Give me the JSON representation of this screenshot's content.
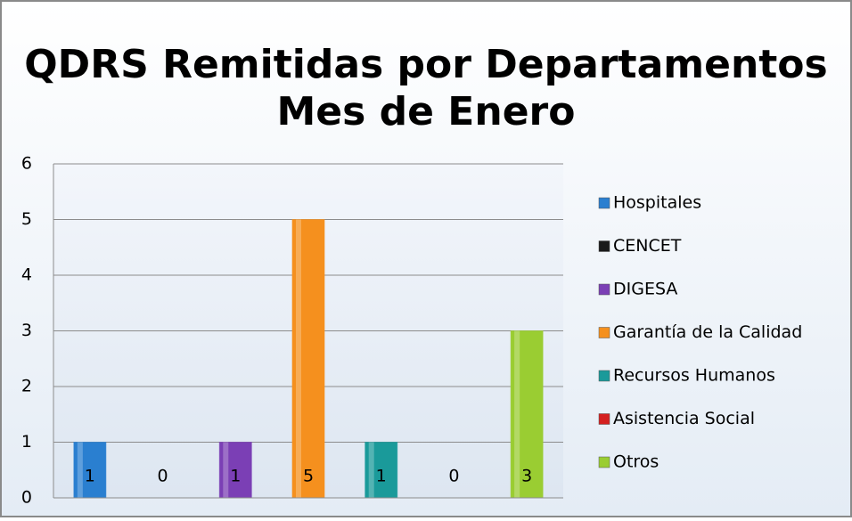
{
  "chart_data": {
    "type": "bar",
    "title": [
      "QDRS Remitidas por Departamentos",
      "Mes de Enero"
    ],
    "categories": [
      null
    ],
    "series": [
      {
        "name": "Hospitales",
        "color": "#2a7fd0",
        "values": [
          1
        ]
      },
      {
        "name": "CENCET",
        "color": "#1a1a1a",
        "values": [
          0
        ]
      },
      {
        "name": "DIGESA",
        "color": "#7b3fb5",
        "values": [
          1
        ]
      },
      {
        "name": "Garantía de la Calidad",
        "color": "#f5901e",
        "values": [
          5
        ]
      },
      {
        "name": "Recursos Humanos",
        "color": "#1a9a9a",
        "values": [
          1
        ]
      },
      {
        "name": "Asistencia Social",
        "color": "#d42020",
        "values": [
          0
        ]
      },
      {
        "name": "Otros",
        "color": "#9acd32",
        "values": [
          3
        ]
      }
    ],
    "ylim": [
      0,
      6
    ],
    "yticks": [
      0,
      1,
      2,
      3,
      4,
      5,
      6
    ],
    "grid": true,
    "legend": "right"
  }
}
